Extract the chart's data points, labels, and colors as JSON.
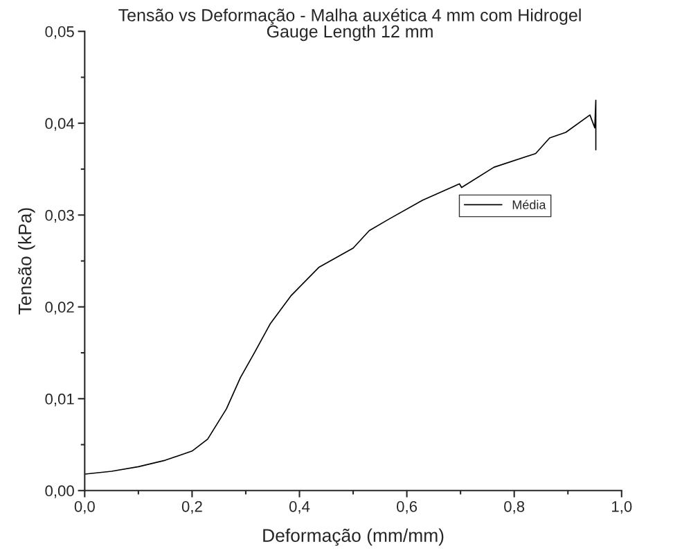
{
  "chart_data": {
    "type": "line",
    "title": "Tensão vs Deformação - Malha auxética 4 mm com Hidrogel",
    "subtitle": "Gauge Length 12 mm",
    "xlabel": "Deformação (mm/mm)",
    "ylabel": "Tensão (kPa)",
    "series": [
      {
        "name": "Média",
        "color": "#000000",
        "x": [
          0.001,
          0.05,
          0.1,
          0.15,
          0.2,
          0.229,
          0.264,
          0.29,
          0.316,
          0.346,
          0.384,
          0.436,
          0.5,
          0.53,
          0.565,
          0.629,
          0.698,
          0.702,
          0.762,
          0.84,
          0.866,
          0.896,
          0.941,
          0.95,
          0.952,
          0.952,
          0.952
        ],
        "values": [
          0.0018,
          0.0021,
          0.0026,
          0.0033,
          0.0043,
          0.0056,
          0.0089,
          0.0123,
          0.015,
          0.0182,
          0.0212,
          0.0243,
          0.0264,
          0.0283,
          0.0295,
          0.0316,
          0.0334,
          0.033,
          0.0352,
          0.0367,
          0.0384,
          0.039,
          0.0409,
          0.0395,
          0.0425,
          0.0371,
          0.0395
        ]
      }
    ],
    "xlim": [
      0,
      1.0
    ],
    "ylim": [
      0,
      0.05
    ],
    "xticks": [
      {
        "value": 0,
        "label": "0,0"
      },
      {
        "value": 0.2,
        "label": "0,2"
      },
      {
        "value": 0.4,
        "label": "0,4"
      },
      {
        "value": 0.6,
        "label": "0,6"
      },
      {
        "value": 0.8,
        "label": "0,8"
      },
      {
        "value": 1.0,
        "label": "1,0"
      }
    ],
    "yticks": [
      {
        "value": 0,
        "label": "0,00"
      },
      {
        "value": 0.01,
        "label": "0,01"
      },
      {
        "value": 0.02,
        "label": "0,02"
      },
      {
        "value": 0.03,
        "label": "0,03"
      },
      {
        "value": 0.04,
        "label": "0,04"
      },
      {
        "value": 0.05,
        "label": "0,05"
      }
    ],
    "grid": false,
    "legend": "right",
    "line_style": "solid"
  }
}
